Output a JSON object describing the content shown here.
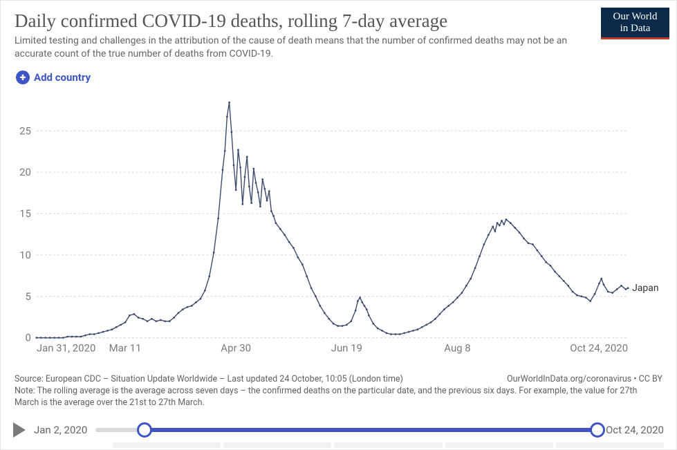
{
  "header": {
    "title": "Daily confirmed COVID-19 deaths, rolling 7-day average",
    "subtitle": "Limited testing and challenges in the attribution of the cause of death means that the number of confirmed deaths may not be an accurate count of the true number of deaths from COVID-19.",
    "logo_line1": "Our World",
    "logo_line2": "in Data",
    "add_country_label": "Add country"
  },
  "colors": {
    "accent": "#3f55c6",
    "series": "#3d4a6b",
    "grid": "#d6d6d6",
    "axis_text": "#7a7a7a",
    "title_text": "#555555",
    "body_text": "#666666",
    "logo_bg": "#0b2a4a",
    "logo_underline": "#c0392b",
    "track_bg": "#d9d9d9",
    "play": "#7a7a7a",
    "background": "#ffffff"
  },
  "chart": {
    "type": "line",
    "x_domain_days": [
      0,
      267
    ],
    "y_domain": [
      0,
      28
    ],
    "y_ticks": [
      0,
      5,
      10,
      15,
      20,
      25
    ],
    "x_ticks": [
      {
        "d": 0,
        "label": "Jan 31, 2020"
      },
      {
        "d": 40,
        "label": "Mar 11"
      },
      {
        "d": 90,
        "label": "Apr 30"
      },
      {
        "d": 140,
        "label": "Jun 19"
      },
      {
        "d": 190,
        "label": "Aug 8"
      },
      {
        "d": 267,
        "label": "Oct 24, 2020"
      }
    ],
    "grid_dash": "3 3",
    "line_width": 1.4,
    "marker_radius": 1.4,
    "title_fontsize": 27,
    "axis_fontsize": 15,
    "series": [
      {
        "name": "Japan",
        "label": "Japan",
        "color": "#3d4a6b",
        "points": [
          [
            0,
            0
          ],
          [
            2,
            0
          ],
          [
            4,
            0
          ],
          [
            6,
            0
          ],
          [
            8,
            0
          ],
          [
            10,
            0
          ],
          [
            12,
            0
          ],
          [
            14,
            0.14
          ],
          [
            16,
            0.14
          ],
          [
            18,
            0.14
          ],
          [
            20,
            0.14
          ],
          [
            22,
            0.29
          ],
          [
            24,
            0.43
          ],
          [
            26,
            0.43
          ],
          [
            28,
            0.57
          ],
          [
            30,
            0.71
          ],
          [
            32,
            0.86
          ],
          [
            34,
            1
          ],
          [
            36,
            1.29
          ],
          [
            38,
            1.57
          ],
          [
            40,
            1.86
          ],
          [
            42,
            2.71
          ],
          [
            44,
            2.86
          ],
          [
            46,
            2.43
          ],
          [
            48,
            2.29
          ],
          [
            50,
            2
          ],
          [
            52,
            2.29
          ],
          [
            54,
            2
          ],
          [
            56,
            2.14
          ],
          [
            58,
            2
          ],
          [
            60,
            2
          ],
          [
            62,
            2.43
          ],
          [
            64,
            3
          ],
          [
            66,
            3.43
          ],
          [
            68,
            3.71
          ],
          [
            70,
            3.86
          ],
          [
            72,
            4.29
          ],
          [
            74,
            4.71
          ],
          [
            76,
            5.71
          ],
          [
            78,
            7.43
          ],
          [
            80,
            10.29
          ],
          [
            82,
            14.43
          ],
          [
            84,
            20.29
          ],
          [
            85,
            22.57
          ],
          [
            86,
            26.71
          ],
          [
            87,
            28.43
          ],
          [
            88,
            24.86
          ],
          [
            89,
            20.86
          ],
          [
            90,
            17.86
          ],
          [
            91,
            22.71
          ],
          [
            92,
            20.57
          ],
          [
            93,
            16.14
          ],
          [
            94,
            19.43
          ],
          [
            95,
            21.86
          ],
          [
            96,
            18.29
          ],
          [
            97,
            16.29
          ],
          [
            98,
            20.43
          ],
          [
            99,
            18.71
          ],
          [
            100,
            17.57
          ],
          [
            101,
            15.86
          ],
          [
            102,
            19.14
          ],
          [
            103,
            18
          ],
          [
            104,
            16.57
          ],
          [
            105,
            17.71
          ],
          [
            106,
            15.29
          ],
          [
            107,
            14.71
          ],
          [
            108,
            13.86
          ],
          [
            110,
            13.14
          ],
          [
            112,
            12.43
          ],
          [
            114,
            11.57
          ],
          [
            116,
            10.86
          ],
          [
            118,
            9.71
          ],
          [
            120,
            8.86
          ],
          [
            122,
            7.43
          ],
          [
            124,
            6
          ],
          [
            126,
            5
          ],
          [
            128,
            3.86
          ],
          [
            130,
            3
          ],
          [
            132,
            2.29
          ],
          [
            134,
            1.71
          ],
          [
            136,
            1.43
          ],
          [
            138,
            1.43
          ],
          [
            140,
            1.57
          ],
          [
            142,
            2
          ],
          [
            144,
            3.29
          ],
          [
            145,
            4.43
          ],
          [
            146,
            4.86
          ],
          [
            147,
            4.29
          ],
          [
            148,
            3.86
          ],
          [
            149,
            3.43
          ],
          [
            150,
            2.71
          ],
          [
            152,
            1.71
          ],
          [
            154,
            1.14
          ],
          [
            156,
            0.86
          ],
          [
            158,
            0.57
          ],
          [
            160,
            0.43
          ],
          [
            162,
            0.43
          ],
          [
            164,
            0.43
          ],
          [
            166,
            0.57
          ],
          [
            168,
            0.71
          ],
          [
            170,
            0.86
          ],
          [
            172,
            1
          ],
          [
            174,
            1.29
          ],
          [
            176,
            1.57
          ],
          [
            178,
            1.86
          ],
          [
            180,
            2.29
          ],
          [
            182,
            2.86
          ],
          [
            184,
            3.43
          ],
          [
            186,
            3.86
          ],
          [
            188,
            4.29
          ],
          [
            190,
            4.86
          ],
          [
            192,
            5.43
          ],
          [
            194,
            6.29
          ],
          [
            196,
            7.14
          ],
          [
            198,
            8.43
          ],
          [
            200,
            9.86
          ],
          [
            202,
            11.29
          ],
          [
            204,
            12.43
          ],
          [
            206,
            13.43
          ],
          [
            207,
            12.86
          ],
          [
            208,
            13.86
          ],
          [
            209,
            13.57
          ],
          [
            210,
            14.14
          ],
          [
            211,
            13.71
          ],
          [
            212,
            14.29
          ],
          [
            214,
            13.86
          ],
          [
            216,
            13.29
          ],
          [
            218,
            12.71
          ],
          [
            220,
            12
          ],
          [
            222,
            11.43
          ],
          [
            224,
            11.29
          ],
          [
            226,
            10.57
          ],
          [
            228,
            9.86
          ],
          [
            230,
            9.14
          ],
          [
            232,
            8.71
          ],
          [
            234,
            8
          ],
          [
            236,
            7.43
          ],
          [
            238,
            6.86
          ],
          [
            240,
            6.29
          ],
          [
            242,
            5.57
          ],
          [
            244,
            5.14
          ],
          [
            246,
            5
          ],
          [
            248,
            4.86
          ],
          [
            250,
            4.43
          ],
          [
            252,
            5.29
          ],
          [
            254,
            6.57
          ],
          [
            255,
            7.14
          ],
          [
            256,
            6.43
          ],
          [
            258,
            5.57
          ],
          [
            260,
            5.43
          ],
          [
            262,
            5.86
          ],
          [
            264,
            6.29
          ],
          [
            266,
            5.86
          ],
          [
            267,
            6
          ]
        ]
      }
    ]
  },
  "footer": {
    "source_line": "Source: European CDC – Situation Update Worldwide – Last updated 24 October, 10:05 (London time)",
    "right_line": "OurWorldInData.org/coronavirus • CC BY",
    "note_line": "Note: The rolling average is the average across seven days – the confirmed deaths on the particular date, and the previous six days. For example, the value for 27th March is the average over the 21st to 27th March."
  },
  "timeline": {
    "start_label": "Jan 2, 2020",
    "end_label": "Oct 24, 2020",
    "full_days": 296,
    "sel_start_day": 29,
    "sel_end_day": 296
  }
}
